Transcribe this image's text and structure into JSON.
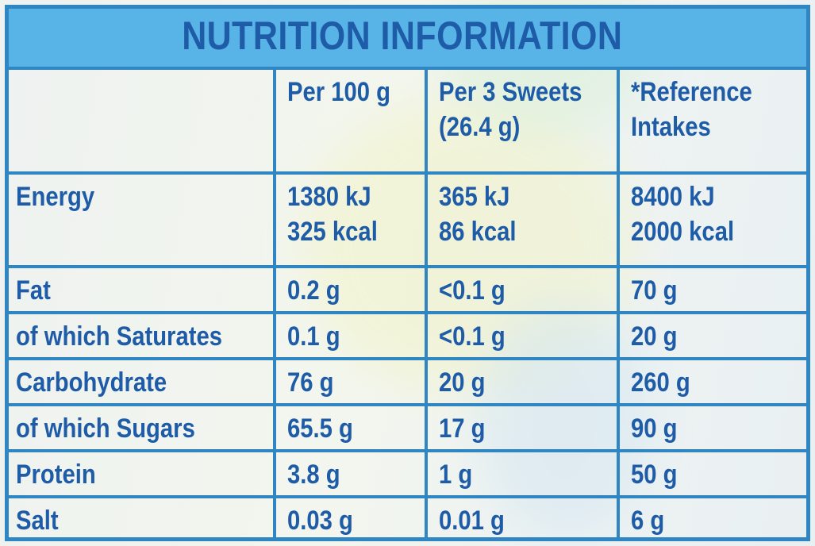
{
  "title": "NUTRITION INFORMATION",
  "columns": [
    "",
    "Per 100 g",
    [
      "Per 3 Sweets",
      "(26.4 g)"
    ],
    [
      "*Reference",
      "Intakes"
    ]
  ],
  "energy": {
    "label": "Energy",
    "per100": [
      "1380 kJ",
      "325 kcal"
    ],
    "per3": [
      "365 kJ",
      "86 kcal"
    ],
    "ri": [
      "8400 kJ",
      "2000 kcal"
    ]
  },
  "rows": [
    {
      "label": "Fat",
      "per100": "0.2 g",
      "per3": "<0.1 g",
      "ri": "70 g"
    },
    {
      "label": "of which Saturates",
      "per100": "0.1 g",
      "per3": "<0.1 g",
      "ri": "20 g"
    },
    {
      "label": "Carbohydrate",
      "per100": "76 g",
      "per3": "20 g",
      "ri": "260 g"
    },
    {
      "label": "of which Sugars",
      "per100": "65.5 g",
      "per3": "17 g",
      "ri": "90 g"
    },
    {
      "label": "Protein",
      "per100": "3.8 g",
      "per3": "1 g",
      "ri": "50 g"
    },
    {
      "label": "Salt",
      "per100": "0.03 g",
      "per3": "0.01 g",
      "ri": "6 g"
    }
  ],
  "colors": {
    "ink": "#1f5ca8",
    "rule": "#2f86c2",
    "band": "#58b3e6"
  }
}
